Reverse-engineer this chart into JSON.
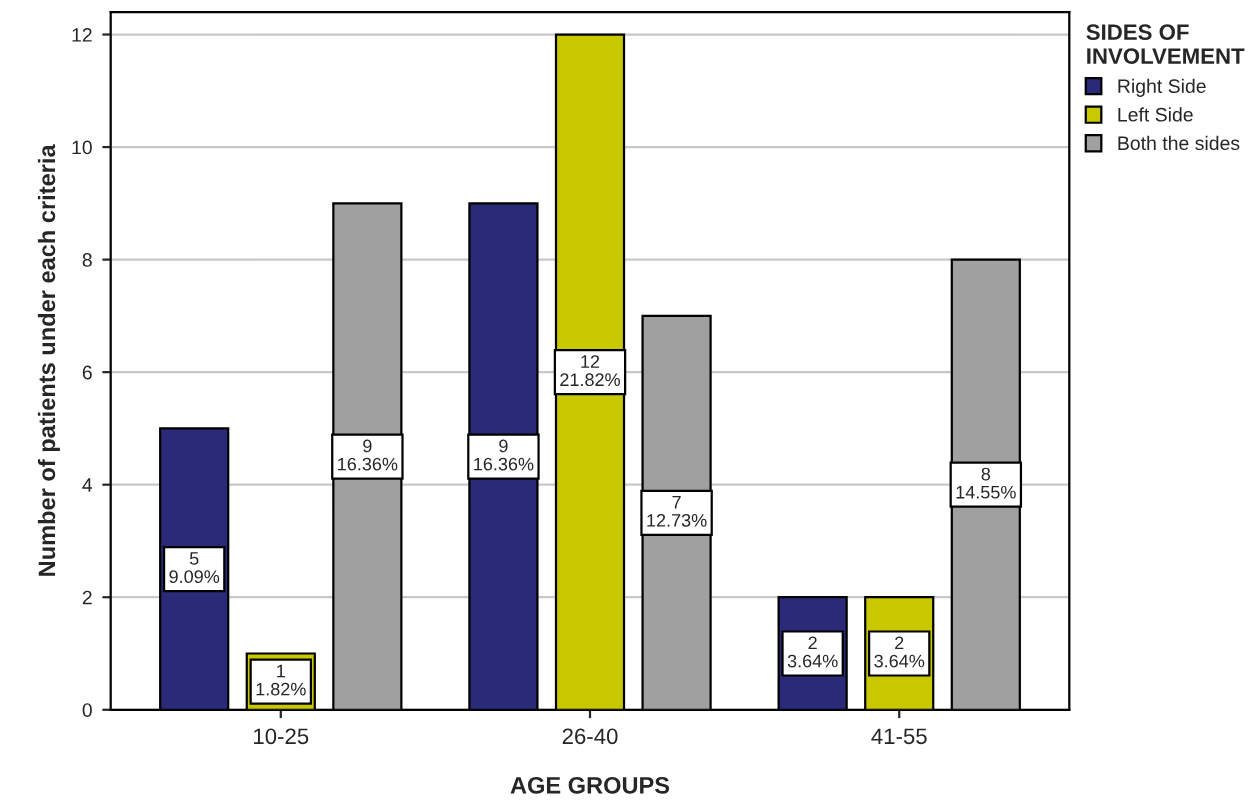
{
  "chart_data": {
    "type": "bar",
    "xlabel": "AGE GROUPS",
    "ylabel": "Number of patients under each criteria",
    "legend_title": "SIDES OF\nINVOLVEMENT",
    "categories": [
      "10-25",
      "26-40",
      "41-55"
    ],
    "series": [
      {
        "name": "Right Side",
        "color": "#2a2a78",
        "values": [
          5,
          9,
          2
        ],
        "value_labels": [
          "5\n9.09%",
          "9\n16.36%",
          "2\n3.64%"
        ]
      },
      {
        "name": "Left Side",
        "color": "#c8c800",
        "values": [
          1,
          12,
          2
        ],
        "value_labels": [
          "1\n1.82%",
          "12\n21.82%",
          "2\n3.64%"
        ]
      },
      {
        "name": "Both the sides",
        "color": "#a0a0a0",
        "values": [
          9,
          7,
          8
        ],
        "value_labels": [
          "9\n16.36%",
          "7\n12.73%",
          "8\n14.55%"
        ]
      }
    ],
    "ylim": [
      0,
      12.4
    ],
    "yticks": [
      0,
      2,
      4,
      6,
      8,
      10,
      12
    ],
    "grid": "y",
    "legend": "top right"
  }
}
